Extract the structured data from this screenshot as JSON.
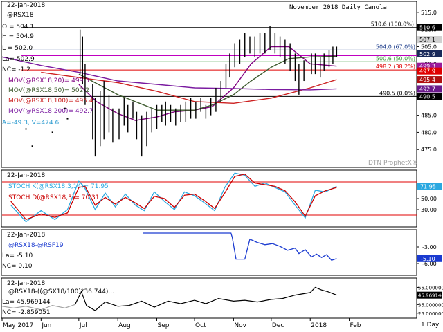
{
  "chart_data": [
    {
      "type": "line",
      "panel": "price",
      "title": "November 2018 Daily Canola",
      "date": "22-Jan-2018",
      "symbol": "@RSX18",
      "ohlc": {
        "open": "O = 504.1",
        "high": "H = 504.9",
        "low": "L = 502.0",
        "last": "La= 502.9",
        "net_change": "NC= -1.2"
      },
      "moving_averages": [
        {
          "label": "MOV(@RSX18,20)= 499.3",
          "color": "#800080",
          "last": 499.3
        },
        {
          "label": "MOV(@RSX18,50)= 502.2",
          "color": "#3d5a2d",
          "last": 502.2
        },
        {
          "label": "MOV(@RSX18,100)= 495.4",
          "color": "#cc2020",
          "last": 495.4
        },
        {
          "label": "MOV(@RSX18,200)= 492.7",
          "color": "#7a1aa0",
          "last": 492.7
        }
      ],
      "extra_stats": "A=-49.3, V=474.6",
      "watermark": "DTN ProphetX®",
      "ylim": [
        470,
        518
      ],
      "y_ticks": [
        475.0,
        480.0,
        485.0,
        490.0,
        495.0,
        500.0,
        505.0,
        510.0,
        515.0
      ],
      "y_tick_labels": [
        "475.0",
        "480.0",
        "485.0",
        "490.0",
        "495.0",
        "500.0",
        "505.0",
        "510.0",
        "515.0"
      ],
      "x_labels": [
        "May 2017",
        "Jun",
        "Jul",
        "Aug",
        "Sep",
        "Oct",
        "Nov",
        "Dec",
        "2018",
        "Feb"
      ],
      "x_dates": [
        "2017-05-01",
        "2017-06-01",
        "2017-07-01",
        "2017-08-01",
        "2017-09-01",
        "2017-10-01",
        "2017-11-01",
        "2017-12-01",
        "2018-01-01",
        "2018-02-01"
      ],
      "x_range": [
        "2017-05-01",
        "2018-02-15"
      ],
      "fib_levels": [
        {
          "label": "510.6 (100.0%)",
          "value": 510.6,
          "color": "#000000"
        },
        {
          "label": "504.0 (67.0%)",
          "value": 504.0,
          "color": "#1a3a8a"
        },
        {
          "label": "500.6 (50.0%)",
          "value": 500.6,
          "color": "#3c9c3c"
        },
        {
          "label": "498.2 (38.2%)",
          "value": 498.2,
          "color": "#e00000"
        },
        {
          "label": "490.5 (0.0%)",
          "value": 490.5,
          "color": "#000000"
        }
      ],
      "highlight_line": {
        "value": 502.4,
        "color": "#c000c0"
      },
      "right_badges": [
        {
          "label": "510.6",
          "value": 510.6,
          "bg": "#000000",
          "fg": "#ffffff"
        },
        {
          "label": "507.1",
          "value": 507.1,
          "bg": "#d0d0d0",
          "fg": "#000000"
        },
        {
          "label": "502.9",
          "value": 502.9,
          "bg": "#1a2a5a",
          "fg": "#ffffff"
        },
        {
          "label": "499.3",
          "value": 499.3,
          "bg": "#9a1a9a",
          "fg": "#ffffff"
        },
        {
          "label": "497.9",
          "value": 497.9,
          "bg": "#e00000",
          "fg": "#ffffff"
        },
        {
          "label": "495.4",
          "value": 495.4,
          "bg": "#b01010",
          "fg": "#ffffff"
        },
        {
          "label": "492.7",
          "value": 492.7,
          "bg": "#6a1a8a",
          "fg": "#ffffff"
        },
        {
          "label": "490.5",
          "value": 490.5,
          "bg": "#000000",
          "fg": "#ffffff"
        }
      ],
      "bars": [
        {
          "x": "2017-07-02",
          "low": 497,
          "high": 510
        },
        {
          "x": "2017-07-04",
          "low": 494,
          "high": 508
        },
        {
          "x": "2017-07-06",
          "low": 488,
          "high": 500
        },
        {
          "x": "2017-07-12",
          "low": 478,
          "high": 494
        },
        {
          "x": "2017-07-14",
          "low": 473,
          "high": 490
        },
        {
          "x": "2017-07-18",
          "low": 476,
          "high": 492
        },
        {
          "x": "2017-07-21",
          "low": 478,
          "high": 495
        },
        {
          "x": "2017-07-25",
          "low": 480,
          "high": 491
        },
        {
          "x": "2017-07-28",
          "low": 477,
          "high": 487
        },
        {
          "x": "2017-08-02",
          "low": 478,
          "high": 487
        },
        {
          "x": "2017-08-06",
          "low": 482,
          "high": 490
        },
        {
          "x": "2017-08-09",
          "low": 480,
          "high": 488
        },
        {
          "x": "2017-08-13",
          "low": 484,
          "high": 489
        },
        {
          "x": "2017-08-16",
          "low": 478,
          "high": 486
        },
        {
          "x": "2017-08-20",
          "low": 473,
          "high": 485
        },
        {
          "x": "2017-08-24",
          "low": 476,
          "high": 486
        },
        {
          "x": "2017-08-28",
          "low": 480,
          "high": 487
        },
        {
          "x": "2017-09-01",
          "low": 481,
          "high": 488
        },
        {
          "x": "2017-09-05",
          "low": 483,
          "high": 488
        },
        {
          "x": "2017-09-08",
          "low": 482,
          "high": 489
        },
        {
          "x": "2017-09-12",
          "low": 483,
          "high": 488
        },
        {
          "x": "2017-09-16",
          "low": 482,
          "high": 487
        },
        {
          "x": "2017-09-20",
          "low": 483,
          "high": 488
        },
        {
          "x": "2017-09-24",
          "low": 483,
          "high": 489
        },
        {
          "x": "2017-09-28",
          "low": 484,
          "high": 490
        },
        {
          "x": "2017-10-02",
          "low": 484,
          "high": 489
        },
        {
          "x": "2017-10-06",
          "low": 486,
          "high": 490
        },
        {
          "x": "2017-10-10",
          "low": 484,
          "high": 488
        },
        {
          "x": "2017-10-14",
          "low": 485,
          "high": 490
        },
        {
          "x": "2017-10-18",
          "low": 486,
          "high": 493
        },
        {
          "x": "2017-10-22",
          "low": 489,
          "high": 495
        },
        {
          "x": "2017-10-26",
          "low": 493,
          "high": 500
        },
        {
          "x": "2017-10-29",
          "low": 496,
          "high": 503
        },
        {
          "x": "2017-11-02",
          "low": 499,
          "high": 506
        },
        {
          "x": "2017-11-06",
          "low": 500,
          "high": 507
        },
        {
          "x": "2017-11-10",
          "low": 502,
          "high": 509
        },
        {
          "x": "2017-11-14",
          "low": 503,
          "high": 508
        },
        {
          "x": "2017-11-18",
          "low": 502,
          "high": 508
        },
        {
          "x": "2017-11-22",
          "low": 503,
          "high": 509
        },
        {
          "x": "2017-11-26",
          "low": 503,
          "high": 509
        },
        {
          "x": "2017-11-30",
          "low": 504,
          "high": 511
        },
        {
          "x": "2017-12-04",
          "low": 503,
          "high": 509
        },
        {
          "x": "2017-12-08",
          "low": 502,
          "high": 508
        },
        {
          "x": "2017-12-12",
          "low": 500,
          "high": 507
        },
        {
          "x": "2017-12-16",
          "low": 498,
          "high": 506
        },
        {
          "x": "2017-12-20",
          "low": 495,
          "high": 503
        },
        {
          "x": "2017-12-23",
          "low": 491,
          "high": 500
        },
        {
          "x": "2017-12-27",
          "low": 495,
          "high": 501
        },
        {
          "x": "2018-01-02",
          "low": 497,
          "high": 503
        },
        {
          "x": "2018-01-05",
          "low": 497,
          "high": 503
        },
        {
          "x": "2018-01-09",
          "low": 496,
          "high": 502
        },
        {
          "x": "2018-01-12",
          "low": 498,
          "high": 503
        },
        {
          "x": "2018-01-16",
          "low": 499,
          "high": 504
        },
        {
          "x": "2018-01-19",
          "low": 500,
          "high": 505
        },
        {
          "x": "2018-01-22",
          "low": 502,
          "high": 505
        }
      ],
      "stray_points": [
        {
          "x": "2017-05-20",
          "y": 481
        },
        {
          "x": "2017-05-25",
          "y": 476
        },
        {
          "x": "2017-06-10",
          "y": 480
        },
        {
          "x": "2017-06-20",
          "y": 487
        },
        {
          "x": "2017-06-22",
          "y": 484
        }
      ],
      "series": [
        {
          "name": "MOV(@RSX18,20)",
          "color": "#800080",
          "x": [
            "2017-07-01",
            "2017-07-15",
            "2017-08-01",
            "2017-08-15",
            "2017-09-01",
            "2017-09-15",
            "2017-10-01",
            "2017-10-15",
            "2017-11-01",
            "2017-11-15",
            "2017-12-01",
            "2017-12-15",
            "2018-01-01",
            "2018-01-22"
          ],
          "y": [
            494,
            489,
            485.5,
            483.5,
            484.5,
            486,
            486.5,
            487.5,
            493,
            500,
            505,
            505,
            500,
            499.3
          ]
        },
        {
          "name": "MOV(@RSX18,50)",
          "color": "#3d5a2d",
          "x": [
            "2017-07-01",
            "2017-08-01",
            "2017-09-01",
            "2017-10-01",
            "2017-10-15",
            "2017-11-01",
            "2017-11-15",
            "2017-12-01",
            "2017-12-15",
            "2018-01-01",
            "2018-01-22"
          ],
          "y": [
            497,
            491,
            486.5,
            486.5,
            488,
            491,
            495,
            499,
            501.5,
            502,
            502.2
          ]
        },
        {
          "name": "MOV(@RSX18,100)",
          "color": "#cc2020",
          "x": [
            "2017-06-01",
            "2017-07-01",
            "2017-08-01",
            "2017-09-01",
            "2017-10-01",
            "2017-11-01",
            "2017-12-01",
            "2018-01-01",
            "2018-01-22"
          ],
          "y": [
            497.5,
            496,
            494.5,
            492,
            489,
            488.5,
            490,
            493,
            495.4
          ]
        },
        {
          "name": "MOV(@RSX18,200)",
          "color": "#7a1aa0",
          "x": [
            "2017-05-01",
            "2017-06-01",
            "2017-07-01",
            "2017-08-01",
            "2017-09-01",
            "2017-10-01",
            "2017-11-01",
            "2017-12-01",
            "2018-01-01",
            "2018-01-22"
          ],
          "y": [
            502,
            499.5,
            497.5,
            495,
            494,
            493,
            492.8,
            492.5,
            492.4,
            492.7
          ]
        }
      ]
    },
    {
      "type": "line",
      "panel": "stochastic",
      "date": "22-Jan-2018",
      "legend": [
        {
          "label": "STOCH K(@RSX18,3,14)= 71.95",
          "color": "#2aa8e0"
        },
        {
          "label": "STOCH D(@RSX18,3)= 70.31",
          "color": "#cc0000"
        }
      ],
      "ylim": [
        0,
        100
      ],
      "y_ticks": [
        30.0,
        50.0
      ],
      "y_tick_labels": [
        "30.00",
        "50.00"
      ],
      "ref_lines": [
        80,
        20
      ],
      "right_badge": {
        "label": "71.95",
        "value": 71.95,
        "bg": "#2aa8e0"
      },
      "series": [
        {
          "name": "STOCH K(@RSX18,3,14)",
          "color": "#2aa8e0",
          "x": [
            "2017-05-08",
            "2017-05-20",
            "2017-06-01",
            "2017-06-12",
            "2017-06-22",
            "2017-07-01",
            "2017-07-06",
            "2017-07-14",
            "2017-07-22",
            "2017-07-30",
            "2017-08-07",
            "2017-08-15",
            "2017-08-22",
            "2017-08-30",
            "2017-09-07",
            "2017-09-15",
            "2017-09-23",
            "2017-10-01",
            "2017-10-09",
            "2017-10-17",
            "2017-10-25",
            "2017-11-02",
            "2017-11-10",
            "2017-11-18",
            "2017-11-26",
            "2017-12-04",
            "2017-12-12",
            "2017-12-20",
            "2017-12-28",
            "2018-01-05",
            "2018-01-13",
            "2018-01-22"
          ],
          "y": [
            38,
            8,
            28,
            12,
            30,
            82,
            68,
            30,
            60,
            35,
            58,
            38,
            28,
            62,
            45,
            30,
            62,
            55,
            42,
            28,
            70,
            96,
            92,
            72,
            78,
            70,
            62,
            38,
            15,
            65,
            62,
            72
          ]
        },
        {
          "name": "STOCH D(@RSX18,3)",
          "color": "#cc0000",
          "x": [
            "2017-05-08",
            "2017-05-20",
            "2017-06-01",
            "2017-06-12",
            "2017-06-22",
            "2017-07-01",
            "2017-07-06",
            "2017-07-14",
            "2017-07-22",
            "2017-07-30",
            "2017-08-07",
            "2017-08-15",
            "2017-08-22",
            "2017-08-30",
            "2017-09-07",
            "2017-09-15",
            "2017-09-23",
            "2017-10-01",
            "2017-10-09",
            "2017-10-17",
            "2017-10-25",
            "2017-11-02",
            "2017-11-10",
            "2017-11-18",
            "2017-11-26",
            "2017-12-04",
            "2017-12-12",
            "2017-12-20",
            "2017-12-28",
            "2018-01-05",
            "2018-01-13",
            "2018-01-22"
          ],
          "y": [
            45,
            12,
            22,
            16,
            24,
            70,
            72,
            38,
            52,
            40,
            52,
            42,
            32,
            54,
            50,
            34,
            56,
            58,
            46,
            32,
            60,
            90,
            94,
            78,
            75,
            72,
            64,
            44,
            18,
            55,
            64,
            70
          ]
        }
      ]
    },
    {
      "type": "line",
      "panel": "spread",
      "date": "22-Jan-2018",
      "legend": [
        {
          "label": "@RSX18-@RSF19",
          "color": "#1a3ad0"
        }
      ],
      "last": "La= -5.10",
      "net_change": "NC= 0.10",
      "ylim": [
        -8,
        0
      ],
      "y_ticks": [
        -3.0,
        -6.0
      ],
      "y_tick_labels": [
        "-3.00",
        "-6.00"
      ],
      "right_badge": {
        "label": "-5.10",
        "value": -5.1,
        "bg": "#1a3ad0"
      },
      "series": [
        {
          "name": "@RSX18-@RSF19",
          "color": "#1a3ad0",
          "x": [
            "2017-08-21",
            "2017-10-30",
            "2017-10-31",
            "2017-11-03",
            "2017-11-04",
            "2017-11-10",
            "2017-11-14",
            "2017-11-20",
            "2017-11-26",
            "2017-12-02",
            "2017-12-08",
            "2017-12-14",
            "2017-12-20",
            "2017-12-23",
            "2017-12-28",
            "2018-01-02",
            "2018-01-06",
            "2018-01-10",
            "2018-01-14",
            "2018-01-18",
            "2018-01-22"
          ],
          "y": [
            -0.5,
            -0.5,
            -1.3,
            -5.2,
            -5.2,
            -5.2,
            -1.6,
            -2.2,
            -2.6,
            -2.4,
            -2.9,
            -3.6,
            -3.2,
            -4.2,
            -3.5,
            -4.8,
            -4.3,
            -4.9,
            -4.4,
            -5.4,
            -5.1
          ]
        }
      ]
    },
    {
      "type": "line",
      "panel": "ratio",
      "date": "22-Jan-2018",
      "legend": [
        {
          "label": "@RSX18-((@SX18/100)*36.744)...",
          "color": "#000000"
        }
      ],
      "last": "La= 45.969144",
      "net_change": "NC= -2.859051",
      "ylim": [
        20,
        65
      ],
      "y_ticks": [
        25.0,
        35.0,
        55.0
      ],
      "y_tick_labels": [
        "25.000000",
        "35.000000",
        "55.000000"
      ],
      "right_badge": {
        "label": "45.969144",
        "value": 45.969144,
        "bg": "#000000"
      },
      "series": [
        {
          "name": "@RSX18-((@SX18/100)*36.744) (thin history)",
          "color": "#a0a0a0",
          "x": [
            "2017-05-01",
            "2017-05-10",
            "2017-05-20",
            "2017-06-01",
            "2017-06-10",
            "2017-06-20",
            "2017-06-28"
          ],
          "y": [
            33,
            31,
            33,
            29,
            34,
            31,
            35
          ]
        },
        {
          "name": "@RSX18-((@SX18/100)*36.744)",
          "color": "#000000",
          "x": [
            "2017-06-28",
            "2017-07-03",
            "2017-07-07",
            "2017-07-14",
            "2017-07-22",
            "2017-08-01",
            "2017-08-10",
            "2017-08-20",
            "2017-08-30",
            "2017-09-10",
            "2017-09-20",
            "2017-10-01",
            "2017-10-10",
            "2017-10-20",
            "2017-11-01",
            "2017-11-10",
            "2017-11-20",
            "2017-12-01",
            "2017-12-10",
            "2017-12-20",
            "2018-01-01",
            "2018-01-05",
            "2018-01-10",
            "2018-01-15",
            "2018-01-22"
          ],
          "y": [
            35,
            50,
            34,
            28,
            38,
            33,
            34,
            39,
            32,
            39,
            36,
            40,
            36,
            42,
            39,
            40,
            38,
            41,
            42,
            46,
            49,
            55,
            52,
            50,
            46
          ]
        }
      ]
    }
  ],
  "footer": {
    "timeframe": "1 Day"
  }
}
